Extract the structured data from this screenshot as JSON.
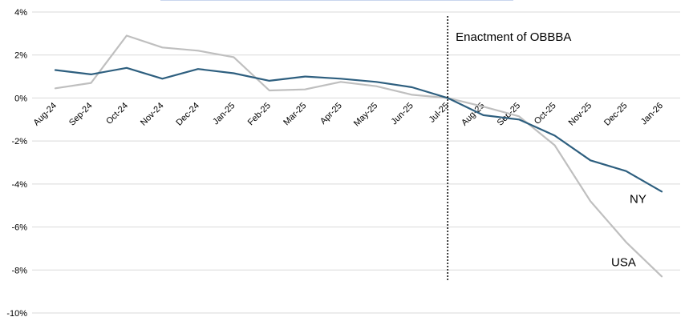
{
  "chart_data": {
    "type": "line",
    "title": "",
    "xlabel": "",
    "ylabel": "",
    "ylim": [
      -10,
      4
    ],
    "yticks": [
      4,
      2,
      0,
      -2,
      -4,
      -6,
      -8,
      -10
    ],
    "ytick_labels": [
      "4%",
      "2%",
      "0%",
      "-2%",
      "-4%",
      "-6%",
      "-8%",
      "-10%"
    ],
    "grid": "horizontal",
    "legend": "none",
    "categories": [
      "Aug-24",
      "Sep-24",
      "Oct-24",
      "Nov-24",
      "Dec-24",
      "Jan-25",
      "Feb-25",
      "Mar-25",
      "Apr-25",
      "May-25",
      "Jun-25",
      "Jul-25",
      "Aug-25",
      "Sep-25",
      "Oct-25",
      "Nov-25",
      "Dec-25",
      "Jan-26"
    ],
    "series": [
      {
        "name": "NY",
        "color": "#2e5f7f",
        "values": [
          1.3,
          1.1,
          1.4,
          0.9,
          1.35,
          1.15,
          0.8,
          1.0,
          0.9,
          0.75,
          0.5,
          0.0,
          -0.8,
          -1.0,
          -1.75,
          -2.9,
          -3.4,
          -4.35
        ]
      },
      {
        "name": "USA",
        "color": "#bfbfbf",
        "values": [
          0.45,
          0.7,
          2.9,
          2.35,
          2.2,
          1.9,
          0.35,
          0.4,
          0.75,
          0.55,
          0.15,
          0.0,
          -0.4,
          -0.85,
          -2.2,
          -4.8,
          -6.7,
          -8.3
        ]
      }
    ],
    "annotation": {
      "text": "Enactment of OBBBA",
      "x_category": "Jul-25"
    }
  }
}
